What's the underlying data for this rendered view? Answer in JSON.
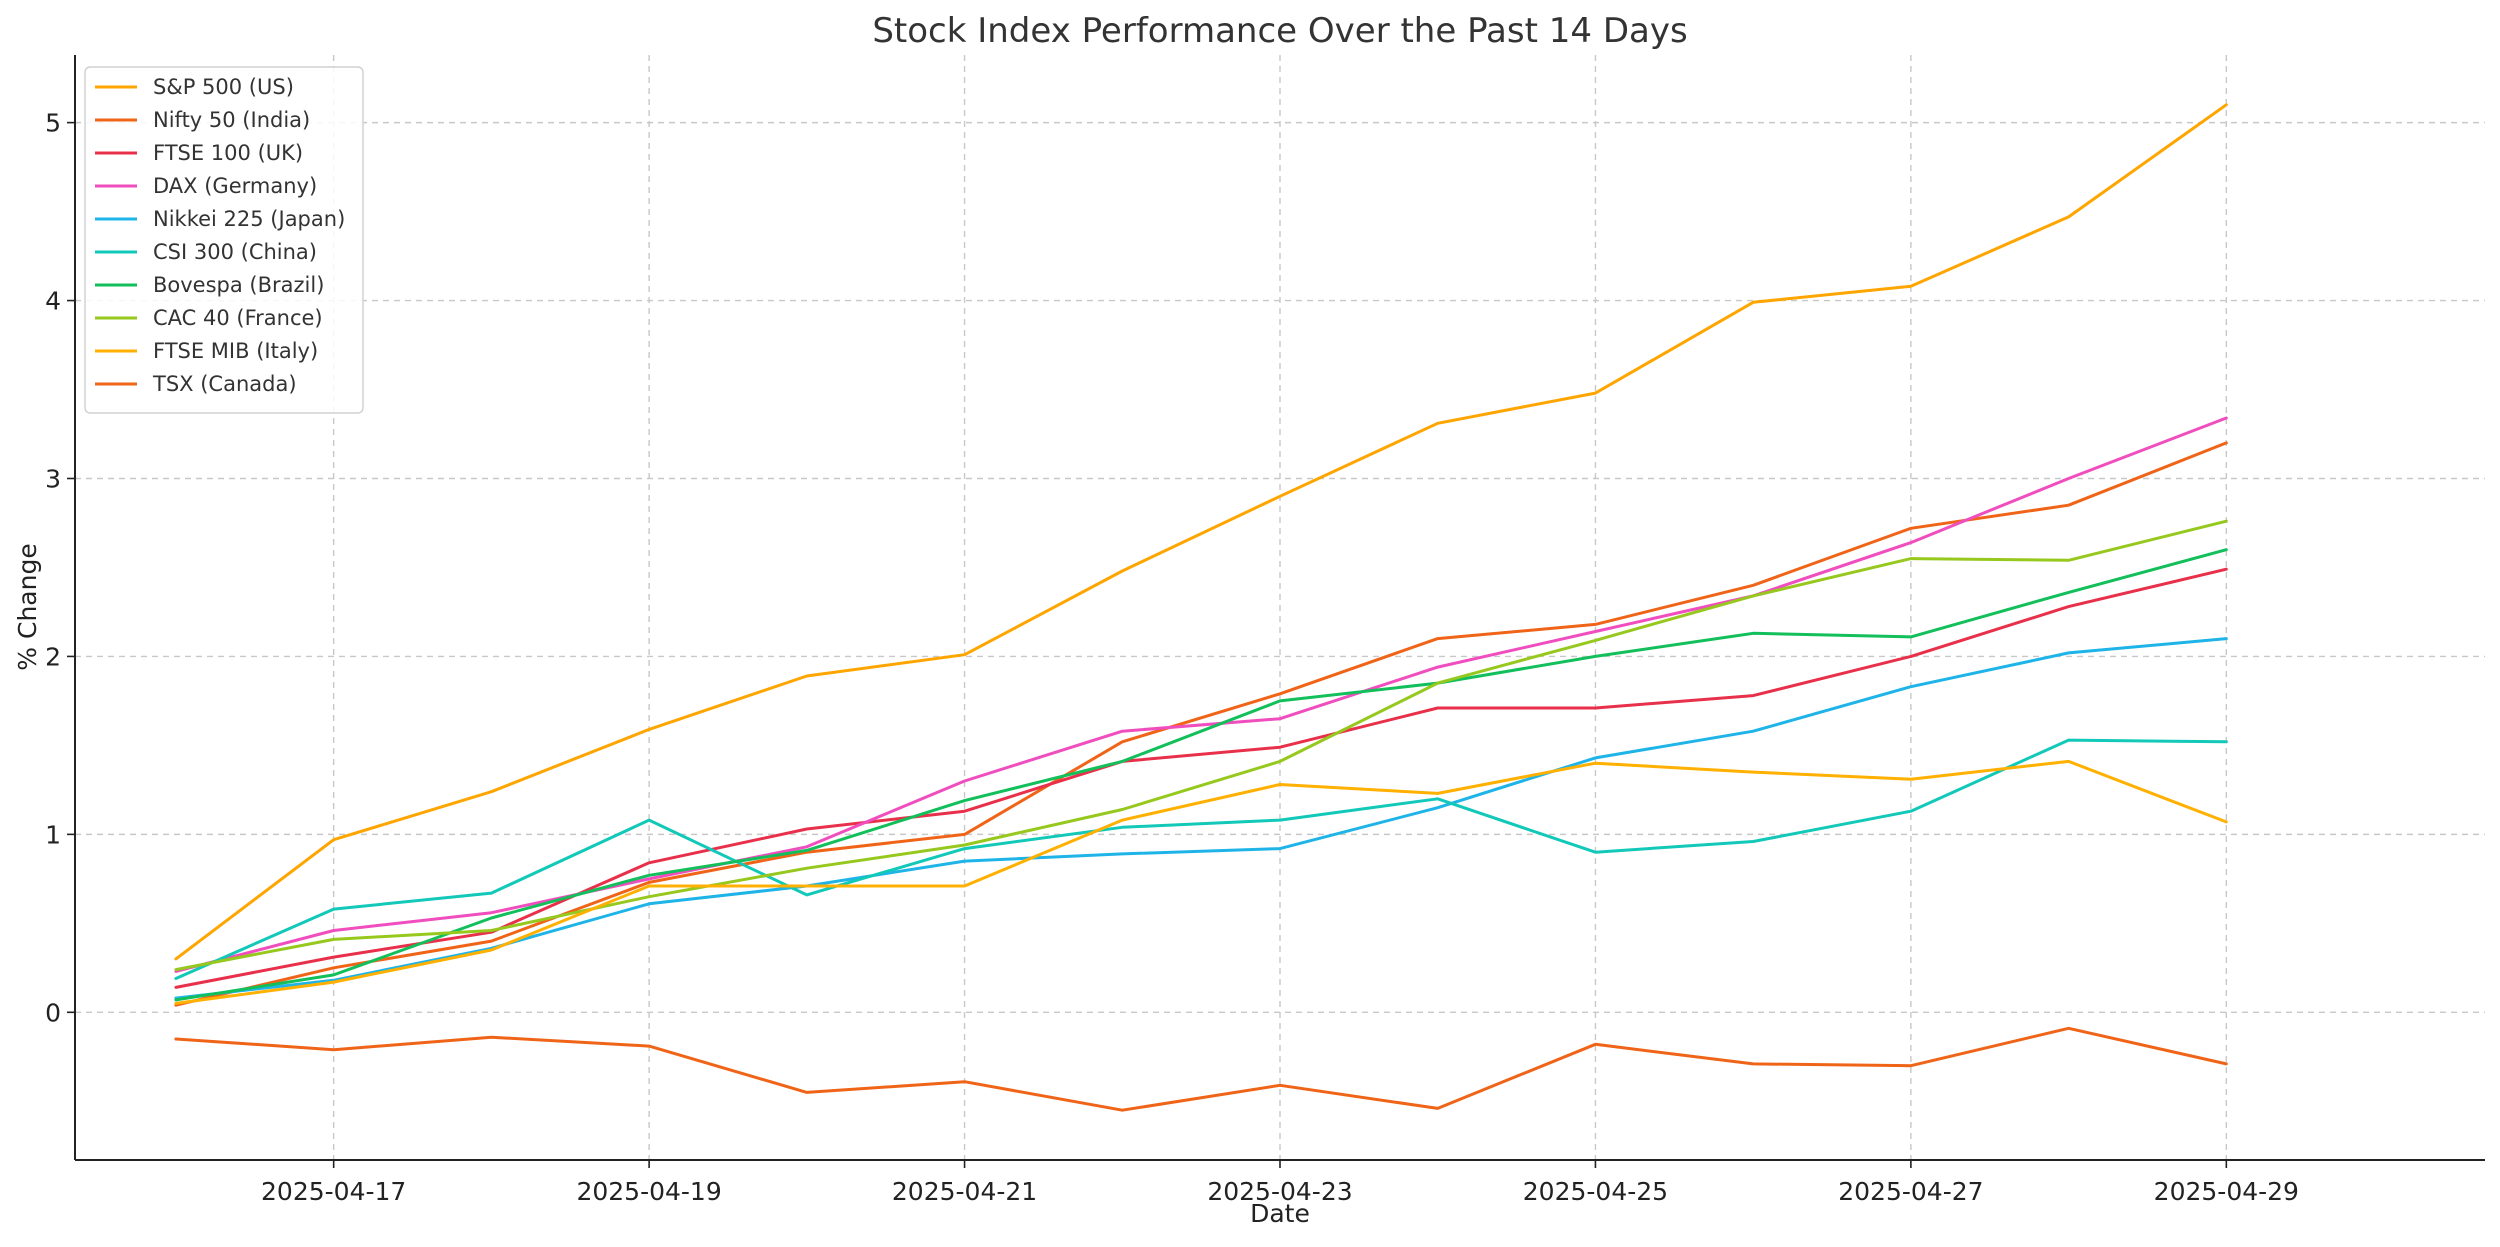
{
  "chart_data": {
    "type": "line",
    "title": "Stock Index Performance Over the Past 14 Days",
    "xlabel": "Date",
    "ylabel": "% Change",
    "x": [
      "2025-04-16",
      "2025-04-17",
      "2025-04-18",
      "2025-04-19",
      "2025-04-20",
      "2025-04-21",
      "2025-04-22",
      "2025-04-23",
      "2025-04-24",
      "2025-04-25",
      "2025-04-26",
      "2025-04-27",
      "2025-04-28",
      "2025-04-29"
    ],
    "x_ticks": [
      "2025-04-17",
      "2025-04-19",
      "2025-04-21",
      "2025-04-23",
      "2025-04-25",
      "2025-04-27",
      "2025-04-29"
    ],
    "y_ticks": [
      0,
      1,
      2,
      3,
      4,
      5
    ],
    "xlim": [
      "2025-04-15",
      "2025-04-30"
    ],
    "ylim": [
      -0.83,
      5.38
    ],
    "grid": true,
    "legend_position": "top-left",
    "series": [
      {
        "name": "S&P 500 (US)",
        "color": "#FFA500",
        "values": [
          0.3,
          0.97,
          1.24,
          1.59,
          1.89,
          2.01,
          2.48,
          2.9,
          3.31,
          3.48,
          3.99,
          4.08,
          4.47,
          5.1
        ]
      },
      {
        "name": "Nifty 50 (India)",
        "color": "#F06418",
        "values": [
          0.04,
          0.25,
          0.4,
          0.73,
          0.9,
          1.0,
          1.52,
          1.79,
          2.1,
          2.18,
          2.4,
          2.72,
          2.85,
          3.2
        ]
      },
      {
        "name": "FTSE 100 (UK)",
        "color": "#E8304A",
        "values": [
          0.14,
          0.31,
          0.45,
          0.84,
          1.03,
          1.13,
          1.41,
          1.49,
          1.71,
          1.71,
          1.78,
          2.0,
          2.28,
          2.49
        ]
      },
      {
        "name": "DAX (Germany)",
        "color": "#F04DBE",
        "values": [
          0.23,
          0.46,
          0.56,
          0.75,
          0.93,
          1.3,
          1.58,
          1.65,
          1.94,
          2.14,
          2.34,
          2.64,
          3.0,
          3.34
        ]
      },
      {
        "name": "Nikkei 225 (Japan)",
        "color": "#1FB4E8",
        "values": [
          0.08,
          0.18,
          0.36,
          0.61,
          0.71,
          0.85,
          0.89,
          0.92,
          1.15,
          1.43,
          1.58,
          1.83,
          2.02,
          2.1
        ]
      },
      {
        "name": "CSI 300 (China)",
        "color": "#12C8B8",
        "values": [
          0.19,
          0.58,
          0.67,
          1.08,
          0.66,
          0.92,
          1.04,
          1.08,
          1.2,
          0.9,
          0.96,
          1.13,
          1.53,
          1.52
        ]
      },
      {
        "name": "Bovespa (Brazil)",
        "color": "#12BF5A",
        "values": [
          0.07,
          0.21,
          0.53,
          0.77,
          0.91,
          1.19,
          1.41,
          1.75,
          1.85,
          2.0,
          2.13,
          2.11,
          2.36,
          2.6
        ]
      },
      {
        "name": "CAC 40 (France)",
        "color": "#96C81E",
        "values": [
          0.24,
          0.41,
          0.46,
          0.65,
          0.81,
          0.94,
          1.14,
          1.41,
          1.85,
          2.09,
          2.34,
          2.55,
          2.54,
          2.76
        ]
      },
      {
        "name": "FTSE MIB (Italy)",
        "color": "#FFB000",
        "values": [
          0.05,
          0.17,
          0.35,
          0.71,
          0.71,
          0.71,
          1.08,
          1.28,
          1.23,
          1.4,
          1.35,
          1.31,
          1.41,
          1.07
        ]
      },
      {
        "name": "TSX (Canada)",
        "color": "#F06418",
        "values": [
          -0.15,
          -0.21,
          -0.14,
          -0.19,
          -0.45,
          -0.39,
          -0.55,
          -0.41,
          -0.54,
          -0.18,
          -0.29,
          -0.3,
          -0.09,
          -0.29
        ]
      }
    ]
  }
}
